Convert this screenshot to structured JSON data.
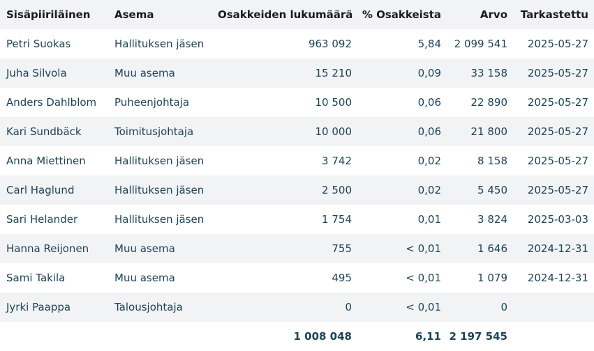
{
  "table": {
    "headers": {
      "insider": "Sisäpiiriläinen",
      "position": "Asema",
      "shares": "Osakkeiden lukumäärä",
      "percent": "% Osakkeista",
      "value": "Arvo",
      "checked": "Tarkastettu"
    },
    "rows": [
      {
        "insider": "Petri Suokas",
        "position": "Hallituksen jäsen",
        "shares": "963 092",
        "percent": "5,84",
        "value": "2 099 541",
        "checked": "2025-05-27"
      },
      {
        "insider": "Juha Silvola",
        "position": "Muu asema",
        "shares": "15 210",
        "percent": "0,09",
        "value": "33 158",
        "checked": "2025-05-27"
      },
      {
        "insider": "Anders Dahlblom",
        "position": "Puheenjohtaja",
        "shares": "10 500",
        "percent": "0,06",
        "value": "22 890",
        "checked": "2025-05-27"
      },
      {
        "insider": "Kari Sundbäck",
        "position": "Toimitusjohtaja",
        "shares": "10 000",
        "percent": "0,06",
        "value": "21 800",
        "checked": "2025-05-27"
      },
      {
        "insider": "Anna Miettinen",
        "position": "Hallituksen jäsen",
        "shares": "3 742",
        "percent": "0,02",
        "value": "8 158",
        "checked": "2025-05-27"
      },
      {
        "insider": "Carl Haglund",
        "position": "Hallituksen jäsen",
        "shares": "2 500",
        "percent": "0,02",
        "value": "5 450",
        "checked": "2025-05-27"
      },
      {
        "insider": "Sari Helander",
        "position": "Hallituksen jäsen",
        "shares": "1 754",
        "percent": "0,01",
        "value": "3 824",
        "checked": "2025-03-03"
      },
      {
        "insider": "Hanna Reijonen",
        "position": "Muu asema",
        "shares": "755",
        "percent": "< 0,01",
        "value": "1 646",
        "checked": "2024-12-31"
      },
      {
        "insider": "Sami Takila",
        "position": "Muu asema",
        "shares": "495",
        "percent": "< 0,01",
        "value": "1 079",
        "checked": "2024-12-31"
      },
      {
        "insider": "Jyrki Paappa",
        "position": "Talousjohtaja",
        "shares": "0",
        "percent": "< 0,01",
        "value": "0",
        "checked": ""
      }
    ],
    "totals": {
      "shares": "1 008 048",
      "percent": "6,11",
      "value": "2 197 545"
    }
  }
}
